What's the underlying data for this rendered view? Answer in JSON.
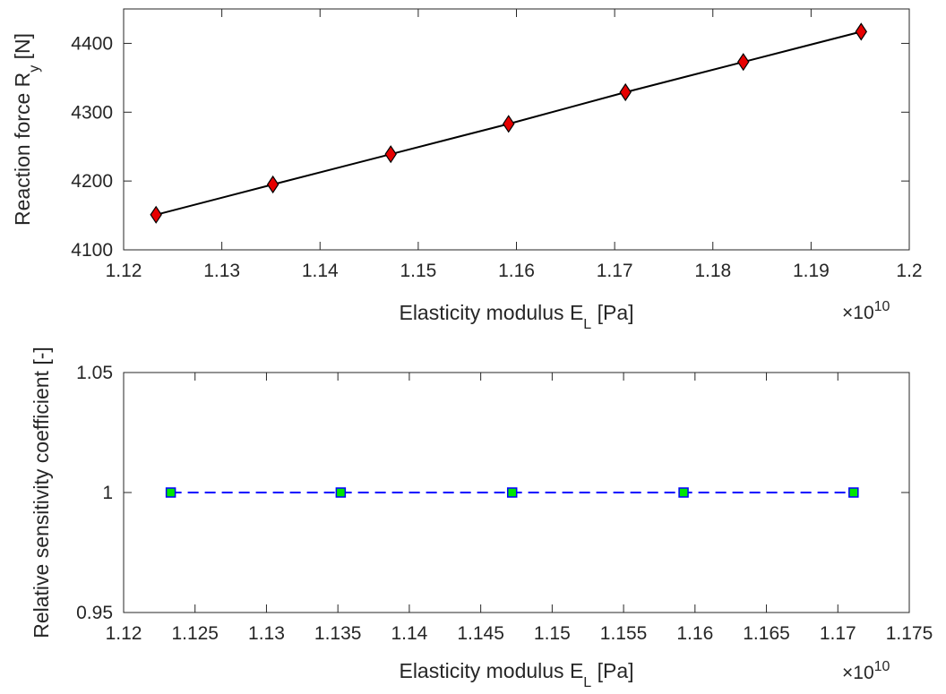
{
  "chart_data": [
    {
      "type": "line",
      "xlabel": {
        "text": "Elasticity modulus E",
        "sub": "L",
        "unit": " [Pa]"
      },
      "ylabel": {
        "text": "Reaction force R",
        "sub": "y",
        "unit": " [N]"
      },
      "x_multiplier": {
        "base": "×10",
        "exponent": "10"
      },
      "xlim": [
        1.12,
        1.2
      ],
      "ylim": [
        4100,
        4450
      ],
      "xticks": [
        1.12,
        1.13,
        1.14,
        1.15,
        1.16,
        1.17,
        1.18,
        1.19,
        1.2
      ],
      "xtick_labels": [
        "1.12",
        "1.13",
        "1.14",
        "1.15",
        "1.16",
        "1.17",
        "1.18",
        "1.19",
        "1.2"
      ],
      "yticks": [
        4100,
        4200,
        4300,
        4400
      ],
      "ytick_labels": [
        "4100",
        "4200",
        "4300",
        "4400"
      ],
      "series": [
        {
          "x": [
            1.1233,
            1.1352,
            1.1472,
            1.1592,
            1.1711,
            1.1831,
            1.1951
          ],
          "y": [
            4151,
            4195,
            4239,
            4283,
            4329,
            4373,
            4417
          ],
          "line_color": "#000000",
          "line_style": "solid",
          "marker": "diamond",
          "marker_color": "#e60000"
        }
      ],
      "grid": false
    },
    {
      "type": "line",
      "xlabel": {
        "text": "Elasticity modulus E",
        "sub": "L",
        "unit": " [Pa]"
      },
      "ylabel": {
        "text": "Relative sensitivity coefficient [-]",
        "sub": "",
        "unit": ""
      },
      "x_multiplier": {
        "base": "×10",
        "exponent": "10"
      },
      "xlim": [
        1.12,
        1.175
      ],
      "ylim": [
        0.95,
        1.05
      ],
      "xticks": [
        1.12,
        1.125,
        1.13,
        1.135,
        1.14,
        1.145,
        1.15,
        1.155,
        1.16,
        1.165,
        1.17,
        1.175
      ],
      "xtick_labels": [
        "1.12",
        "1.125",
        "1.13",
        "1.135",
        "1.14",
        "1.145",
        "1.15",
        "1.155",
        "1.16",
        "1.165",
        "1.17",
        "1.175"
      ],
      "yticks": [
        0.95,
        1,
        1.05
      ],
      "ytick_labels": [
        "0.95",
        "1",
        "1.05"
      ],
      "series": [
        {
          "x": [
            1.1233,
            1.1352,
            1.1472,
            1.1592,
            1.1711
          ],
          "y": [
            1,
            1,
            1,
            1,
            1
          ],
          "line_color": "#0000ff",
          "line_style": "dashed",
          "marker": "square",
          "marker_color": "#00e600"
        }
      ],
      "grid": false
    }
  ]
}
